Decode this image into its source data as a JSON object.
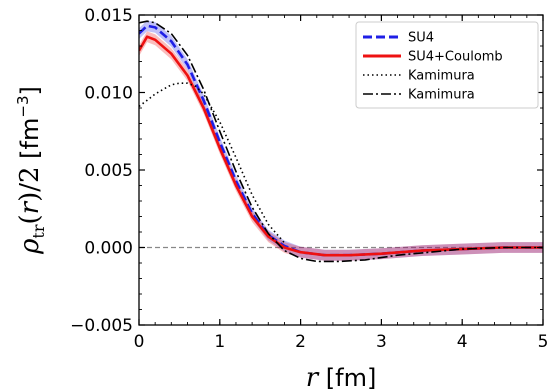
{
  "chart_data": {
    "type": "line",
    "title": "",
    "xlabel": "r [fm]",
    "ylabel": "ρ_tr(r)/2 [fm^-3]",
    "xlim": [
      0,
      5
    ],
    "ylim": [
      -0.005,
      0.015
    ],
    "x_ticks": [
      "0",
      "1",
      "2",
      "3",
      "4",
      "5"
    ],
    "y_ticks": [
      "−0.005",
      "0.000",
      "0.005",
      "0.010",
      "0.015"
    ],
    "grid": false,
    "legend": "top-right",
    "reference_line": {
      "y": 0.0,
      "style": "dashed",
      "color": "#888888"
    },
    "series": [
      {
        "name": "SU4",
        "color": "#1f1fe6",
        "style": "dashed",
        "band": true,
        "x": [
          0.0,
          0.1,
          0.2,
          0.4,
          0.6,
          0.8,
          1.0,
          1.2,
          1.4,
          1.6,
          1.8,
          2.0,
          2.3,
          2.6,
          3.0,
          3.5,
          4.0,
          4.5,
          5.0
        ],
        "y": [
          0.0138,
          0.0143,
          0.0142,
          0.0133,
          0.0118,
          0.0095,
          0.0068,
          0.0043,
          0.0022,
          0.0008,
          0.0001,
          -0.0003,
          -0.0005,
          -0.0005,
          -0.0004,
          -0.0002,
          -0.0001,
          0.0,
          0.0
        ]
      },
      {
        "name": "SU4+Coulomb",
        "color": "#ee1111",
        "style": "solid",
        "band": true,
        "x": [
          0.0,
          0.1,
          0.2,
          0.4,
          0.6,
          0.8,
          1.0,
          1.2,
          1.4,
          1.6,
          1.8,
          2.0,
          2.3,
          2.6,
          3.0,
          3.5,
          4.0,
          4.5,
          5.0
        ],
        "y": [
          0.0127,
          0.0136,
          0.0134,
          0.0125,
          0.0111,
          0.009,
          0.0064,
          0.004,
          0.002,
          0.0007,
          0.0,
          -0.0003,
          -0.0005,
          -0.0005,
          -0.0004,
          -0.0002,
          -0.0001,
          0.0,
          0.0
        ]
      },
      {
        "name": "Kamimura",
        "color": "#000000",
        "style": "dotted",
        "band": false,
        "x": [
          0.0,
          0.1,
          0.2,
          0.3,
          0.4,
          0.5,
          0.6,
          0.7,
          0.8,
          1.0,
          1.2,
          1.4,
          1.6,
          1.8
        ],
        "y": [
          0.0091,
          0.0095,
          0.0099,
          0.0102,
          0.0105,
          0.0106,
          0.0106,
          0.0104,
          0.0099,
          0.0081,
          0.0058,
          0.0034,
          0.0015,
          0.0003
        ]
      },
      {
        "name": "Kamimura",
        "color": "#000000",
        "style": "dashdot",
        "band": false,
        "x": [
          0.0,
          0.1,
          0.2,
          0.4,
          0.6,
          0.8,
          1.0,
          1.2,
          1.4,
          1.6,
          1.8,
          2.0,
          2.2,
          2.5,
          2.8,
          3.2,
          3.6,
          4.0,
          4.5,
          5.0
        ],
        "y": [
          0.0145,
          0.0146,
          0.0145,
          0.0138,
          0.0124,
          0.0102,
          0.0075,
          0.0049,
          0.0026,
          0.0009,
          -0.0002,
          -0.0007,
          -0.0009,
          -0.0009,
          -0.0008,
          -0.0005,
          -0.0003,
          -0.0001,
          0.0,
          0.0
        ]
      }
    ]
  }
}
